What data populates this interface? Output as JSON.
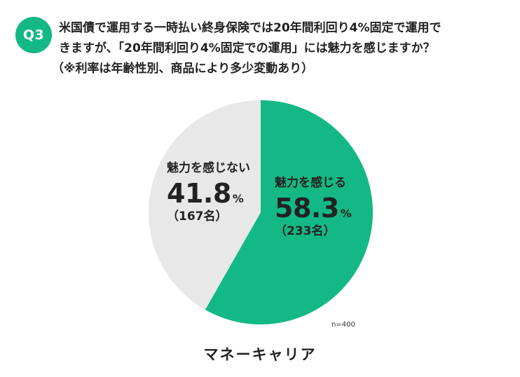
{
  "header": {
    "badge": "Q3",
    "question_line1": "米国債で運用する一時払い終身保険では20年間利回り4%固定で運用で",
    "question_line2": "きますが、「20年間利回り4%固定での運用」には魅力を感じますか？",
    "question_note": "（※利率は年齢性別、商品により多少変動あり）"
  },
  "chart_data": {
    "type": "pie",
    "title": "",
    "slices": [
      {
        "label": "魅力を感じる",
        "percent": 58.3,
        "count": 233,
        "percent_text": "58.3",
        "unit": "%",
        "count_text": "（233名）",
        "color": "#14b885"
      },
      {
        "label": "魅力を感じない",
        "percent": 41.8,
        "count": 167,
        "percent_text": "41.8",
        "unit": "%",
        "count_text": "（167名）",
        "color": "#e8e8e8"
      }
    ],
    "start": "12 o'clock",
    "direction": "clockwise",
    "sample_note": "n=400"
  },
  "footer": {
    "brand": "マネーキャリア"
  }
}
